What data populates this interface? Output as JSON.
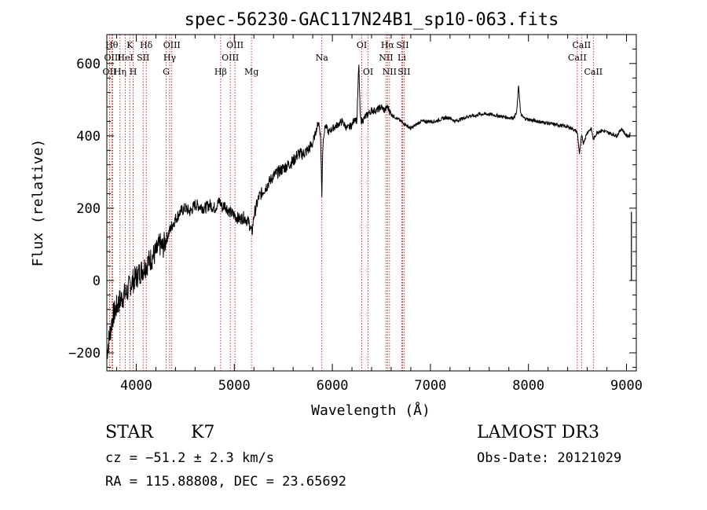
{
  "chart_data": {
    "type": "line",
    "title": "spec-56230-GAC117N24B1_sp10-063.fits",
    "xlabel": "Wavelength (Å)",
    "ylabel": "Flux (relative)",
    "xlim": [
      3700,
      9100
    ],
    "ylim": [
      -250,
      680
    ],
    "x_ticks": [
      4000,
      5000,
      6000,
      7000,
      8000,
      9000
    ],
    "y_ticks": [
      -200,
      0,
      200,
      400,
      600
    ],
    "grid": false,
    "series": [
      {
        "name": "flux",
        "x": [
          3700,
          3730,
          3760,
          3790,
          3820,
          3850,
          3880,
          3910,
          3940,
          3970,
          4000,
          4030,
          4060,
          4090,
          4120,
          4150,
          4180,
          4210,
          4240,
          4270,
          4300,
          4330,
          4360,
          4400,
          4450,
          4500,
          4550,
          4600,
          4650,
          4700,
          4750,
          4800,
          4850,
          4880,
          4900,
          4950,
          5000,
          5050,
          5100,
          5150,
          5180,
          5200,
          5250,
          5300,
          5350,
          5400,
          5450,
          5500,
          5550,
          5600,
          5650,
          5700,
          5750,
          5800,
          5830,
          5860,
          5880,
          5893,
          5900,
          5910,
          5930,
          5960,
          6000,
          6050,
          6100,
          6150,
          6200,
          6230,
          6250,
          6270,
          6285,
          6300,
          6330,
          6360,
          6400,
          6450,
          6500,
          6530,
          6563,
          6600,
          6650,
          6700,
          6750,
          6800,
          6850,
          6900,
          6950,
          7000,
          7050,
          7100,
          7150,
          7200,
          7250,
          7300,
          7350,
          7400,
          7450,
          7500,
          7600,
          7700,
          7800,
          7850,
          7880,
          7900,
          7920,
          7950,
          8000,
          8100,
          8200,
          8300,
          8400,
          8450,
          8498,
          8520,
          8542,
          8560,
          8600,
          8640,
          8662,
          8700,
          8750,
          8800,
          8850,
          8900,
          8950,
          9000,
          9030,
          9050
        ],
        "y": [
          -200,
          -150,
          -100,
          -80,
          -60,
          -50,
          -40,
          -30,
          -10,
          0,
          10,
          20,
          30,
          40,
          50,
          60,
          70,
          80,
          100,
          90,
          110,
          130,
          150,
          170,
          190,
          200,
          190,
          210,
          205,
          200,
          210,
          200,
          220,
          200,
          210,
          190,
          180,
          170,
          175,
          160,
          130,
          180,
          230,
          250,
          270,
          290,
          300,
          310,
          320,
          330,
          350,
          350,
          360,
          380,
          410,
          440,
          400,
          230,
          350,
          400,
          430,
          410,
          420,
          430,
          440,
          420,
          430,
          450,
          440,
          600,
          450,
          440,
          450,
          460,
          470,
          470,
          480,
          470,
          480,
          460,
          450,
          440,
          430,
          420,
          430,
          440,
          440,
          440,
          440,
          445,
          450,
          450,
          440,
          445,
          450,
          455,
          455,
          460,
          460,
          455,
          450,
          450,
          465,
          540,
          460,
          450,
          445,
          440,
          435,
          430,
          425,
          420,
          410,
          350,
          400,
          380,
          410,
          420,
          390,
          410,
          415,
          410,
          405,
          400,
          420,
          400,
          400,
          420
        ]
      }
    ],
    "line_markers": [
      {
        "name": "OII",
        "x": 3727,
        "row": 2
      },
      {
        "name": "Hθ",
        "x": 3750,
        "row": 0
      },
      {
        "name": "OIII",
        "x": 3760,
        "row": 1
      },
      {
        "name": "Hη",
        "x": 3835,
        "row": 2
      },
      {
        "name": "HeI",
        "x": 3889,
        "row": 1
      },
      {
        "name": "K",
        "x": 3934,
        "row": 0
      },
      {
        "name": "H",
        "x": 3969,
        "row": 2
      },
      {
        "name": "SII",
        "x": 4070,
        "row": 1
      },
      {
        "name": "Hδ",
        "x": 4102,
        "row": 0
      },
      {
        "name": "G",
        "x": 4305,
        "row": 2
      },
      {
        "name": "Hγ",
        "x": 4341,
        "row": 1
      },
      {
        "name": "OIII",
        "x": 4363,
        "row": 0
      },
      {
        "name": "Hβ",
        "x": 4861,
        "row": 2
      },
      {
        "name": "OIII",
        "x": 4959,
        "row": 1
      },
      {
        "name": "OIII",
        "x": 5007,
        "row": 0
      },
      {
        "name": "Mg",
        "x": 5175,
        "row": 2
      },
      {
        "name": "Na",
        "x": 5893,
        "row": 1
      },
      {
        "name": "OI",
        "x": 6300,
        "row": 0
      },
      {
        "name": "OI",
        "x": 6364,
        "row": 2
      },
      {
        "name": "NII",
        "x": 6548,
        "row": 1
      },
      {
        "name": "Hα",
        "x": 6563,
        "row": 0
      },
      {
        "name": "NII",
        "x": 6583,
        "row": 2
      },
      {
        "name": "SII",
        "x": 6716,
        "row": 0
      },
      {
        "name": "Li",
        "x": 6708,
        "row": 1
      },
      {
        "name": "SII",
        "x": 6731,
        "row": 2
      },
      {
        "name": "CaII",
        "x": 8498,
        "row": 1
      },
      {
        "name": "CaII",
        "x": 8542,
        "row": 0
      },
      {
        "name": "CaII",
        "x": 8662,
        "row": 2
      }
    ]
  },
  "info": {
    "object_class": "STAR",
    "subclass": "K7",
    "cz": "cz = −51.2 ± 2.3 km/s",
    "coords": "RA = 115.88808, DEC =  23.65692",
    "survey": "LAMOST DR3",
    "obs_date": "Obs-Date: 20121029"
  },
  "colors": {
    "spectrum": "#000000",
    "marker_line": "#c00000",
    "axis": "#000000"
  }
}
